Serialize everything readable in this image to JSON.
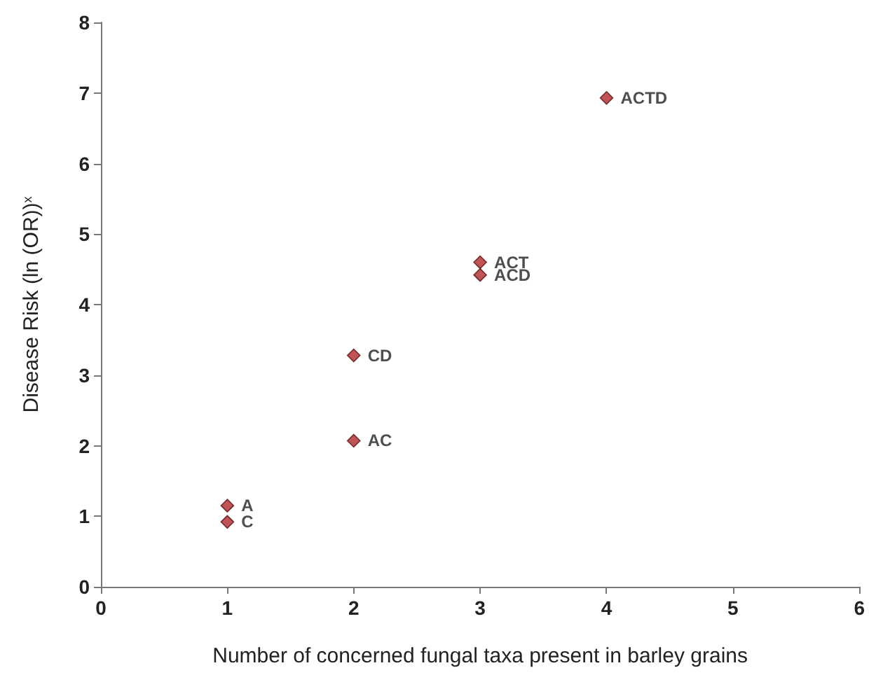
{
  "chart_data": {
    "type": "scatter",
    "xlabel": "Number of concerned fungal taxa present in barley grains",
    "ylabel": "Disease Risk (ln (OR))$^{x}$",
    "x": [
      1,
      1,
      2,
      2,
      3,
      3,
      4
    ],
    "values": [
      1.15,
      0.92,
      2.07,
      3.28,
      4.6,
      4.42,
      6.93
    ],
    "color": "#b0282c",
    "marker": "diamond",
    "xlim": [
      0,
      6
    ],
    "xticks": [
      0,
      1,
      2,
      3,
      4,
      5,
      6
    ],
    "ylim": [
      0,
      8
    ],
    "yticks": [
      0,
      1,
      2,
      3,
      4,
      5,
      6,
      7,
      8
    ],
    "grid": false,
    "annotations": [
      {
        "text": "A",
        "x": 1,
        "y": 1.15
      },
      {
        "text": "C",
        "x": 1,
        "y": 0.92
      },
      {
        "text": "AC",
        "x": 2,
        "y": 2.07
      },
      {
        "text": "CD",
        "x": 2,
        "y": 3.28
      },
      {
        "text": "ACT",
        "x": 3,
        "y": 4.6
      },
      {
        "text": "ACD",
        "x": 3,
        "y": 4.42
      },
      {
        "text": "ACTD",
        "x": 4,
        "y": 6.93
      }
    ]
  }
}
